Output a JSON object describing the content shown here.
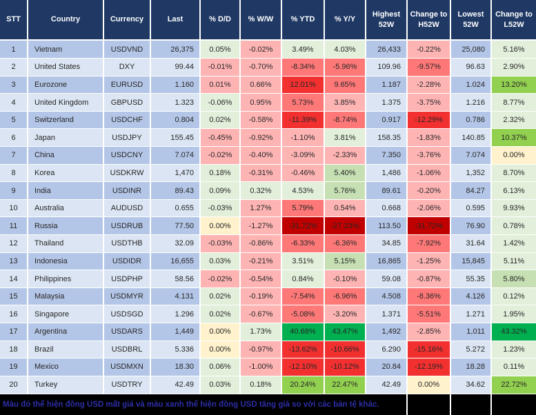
{
  "colors": {
    "header_bg": "#1f3864",
    "header_text": "#ffffff",
    "row_blue_odd": "#b4c6e7",
    "row_blue_even": "#dbe5f3",
    "g": "#e2efda",
    "g1": "#c6e0b4",
    "g2": "#92d050",
    "g3": "#00b050",
    "p": "#ffb4b4",
    "r1": "#ff7878",
    "r2": "#f23030",
    "r3": "#c00000",
    "y": "#fff2cc",
    "footer_bg": "#000000",
    "footer_text": "#2d2da6"
  },
  "table": {
    "columns": [
      "STT",
      "Country",
      "Currency",
      "Last",
      "% D/D",
      "% W/W",
      "% YTD",
      "% Y/Y",
      "Highest 52W",
      "Change to H52W",
      "Lowest 52W",
      "Change to L52W"
    ]
  },
  "rows": [
    {
      "stt": "1",
      "country": "Vietnam",
      "currency": "USDVND",
      "last": "26,375",
      "dd": {
        "v": "0.05%",
        "c": "g"
      },
      "ww": {
        "v": "-0.02%",
        "c": "p"
      },
      "ytd": {
        "v": "3.49%",
        "c": "g"
      },
      "yy": {
        "v": "4.03%",
        "c": "g"
      },
      "high": "26,433",
      "chh": {
        "v": "-0.22%",
        "c": "p"
      },
      "low": "25,080",
      "chl": {
        "v": "5.16%",
        "c": "g"
      }
    },
    {
      "stt": "2",
      "country": "United States",
      "currency": "DXY",
      "last": "99.44",
      "dd": {
        "v": "-0.01%",
        "c": "p"
      },
      "ww": {
        "v": "-0.70%",
        "c": "p"
      },
      "ytd": {
        "v": "-8.34%",
        "c": "r1"
      },
      "yy": {
        "v": "-5.96%",
        "c": "r1"
      },
      "high": "109.96",
      "chh": {
        "v": "-9.57%",
        "c": "r1"
      },
      "low": "96.63",
      "chl": {
        "v": "2.90%",
        "c": "g"
      }
    },
    {
      "stt": "3",
      "country": "Eurozone",
      "currency": "EURUSD",
      "last": "1.160",
      "dd": {
        "v": "0.01%",
        "c": "p"
      },
      "ww": {
        "v": "0.66%",
        "c": "p"
      },
      "ytd": {
        "v": "12.01%",
        "c": "r2"
      },
      "yy": {
        "v": "9.65%",
        "c": "r1"
      },
      "high": "1.187",
      "chh": {
        "v": "-2.28%",
        "c": "p"
      },
      "low": "1.024",
      "chl": {
        "v": "13.20%",
        "c": "g2"
      }
    },
    {
      "stt": "4",
      "country": "United Kingdom",
      "currency": "GBPUSD",
      "last": "1.323",
      "dd": {
        "v": "-0.06%",
        "c": "g"
      },
      "ww": {
        "v": "0.95%",
        "c": "p"
      },
      "ytd": {
        "v": "5.73%",
        "c": "r1"
      },
      "yy": {
        "v": "3.85%",
        "c": "p"
      },
      "high": "1.375",
      "chh": {
        "v": "-3.75%",
        "c": "p"
      },
      "low": "1.216",
      "chl": {
        "v": "8.77%",
        "c": "g"
      }
    },
    {
      "stt": "5",
      "country": "Switzerland",
      "currency": "USDCHF",
      "last": "0.804",
      "dd": {
        "v": "0.02%",
        "c": "g"
      },
      "ww": {
        "v": "-0.58%",
        "c": "p"
      },
      "ytd": {
        "v": "-11.39%",
        "c": "r2"
      },
      "yy": {
        "v": "-8.74%",
        "c": "r1"
      },
      "high": "0.917",
      "chh": {
        "v": "-12.29%",
        "c": "r2"
      },
      "low": "0.786",
      "chl": {
        "v": "2.32%",
        "c": "g"
      }
    },
    {
      "stt": "6",
      "country": "Japan",
      "currency": "USDJPY",
      "last": "155.45",
      "dd": {
        "v": "-0.45%",
        "c": "p"
      },
      "ww": {
        "v": "-0.92%",
        "c": "p"
      },
      "ytd": {
        "v": "-1.10%",
        "c": "p"
      },
      "yy": {
        "v": "3.81%",
        "c": "g"
      },
      "high": "158.35",
      "chh": {
        "v": "-1.83%",
        "c": "p"
      },
      "low": "140.85",
      "chl": {
        "v": "10.37%",
        "c": "g2"
      }
    },
    {
      "stt": "7",
      "country": "China",
      "currency": "USDCNY",
      "last": "7.074",
      "dd": {
        "v": "-0.02%",
        "c": "p"
      },
      "ww": {
        "v": "-0.40%",
        "c": "p"
      },
      "ytd": {
        "v": "-3.09%",
        "c": "p"
      },
      "yy": {
        "v": "-2.33%",
        "c": "p"
      },
      "high": "7.350",
      "chh": {
        "v": "-3.76%",
        "c": "p"
      },
      "low": "7.074",
      "chl": {
        "v": "0.00%",
        "c": "y"
      }
    },
    {
      "stt": "8",
      "country": "Korea",
      "currency": "USDKRW",
      "last": "1,470",
      "dd": {
        "v": "0.18%",
        "c": "g"
      },
      "ww": {
        "v": "-0.31%",
        "c": "p"
      },
      "ytd": {
        "v": "-0.46%",
        "c": "p"
      },
      "yy": {
        "v": "5.40%",
        "c": "g1"
      },
      "high": "1,486",
      "chh": {
        "v": "-1.06%",
        "c": "p"
      },
      "low": "1,352",
      "chl": {
        "v": "8.70%",
        "c": "g"
      }
    },
    {
      "stt": "9",
      "country": "India",
      "currency": "USDINR",
      "last": "89.43",
      "dd": {
        "v": "0.09%",
        "c": "g"
      },
      "ww": {
        "v": "0.32%",
        "c": "g"
      },
      "ytd": {
        "v": "4.53%",
        "c": "g"
      },
      "yy": {
        "v": "5.76%",
        "c": "g1"
      },
      "high": "89.61",
      "chh": {
        "v": "-0.20%",
        "c": "p"
      },
      "low": "84.27",
      "chl": {
        "v": "6.13%",
        "c": "g"
      }
    },
    {
      "stt": "10",
      "country": "Australia",
      "currency": "AUDUSD",
      "last": "0.655",
      "dd": {
        "v": "-0.03%",
        "c": "g"
      },
      "ww": {
        "v": "1.27%",
        "c": "p"
      },
      "ytd": {
        "v": "5.79%",
        "c": "r1"
      },
      "yy": {
        "v": "0.54%",
        "c": "p"
      },
      "high": "0.668",
      "chh": {
        "v": "-2.06%",
        "c": "p"
      },
      "low": "0.595",
      "chl": {
        "v": "9.93%",
        "c": "g"
      }
    },
    {
      "stt": "11",
      "country": "Russia",
      "currency": "USDRUB",
      "last": "77.50",
      "dd": {
        "v": "0.00%",
        "c": "y"
      },
      "ww": {
        "v": "-1.27%",
        "c": "p"
      },
      "ytd": {
        "v": "-31.72%",
        "c": "r3"
      },
      "yy": {
        "v": "-27.23%",
        "c": "r3"
      },
      "high": "113.50",
      "chh": {
        "v": "-31.72%",
        "c": "r3"
      },
      "low": "76.90",
      "chl": {
        "v": "0.78%",
        "c": "g"
      }
    },
    {
      "stt": "12",
      "country": "Thailand",
      "currency": "USDTHB",
      "last": "32.09",
      "dd": {
        "v": "-0.03%",
        "c": "p"
      },
      "ww": {
        "v": "-0.86%",
        "c": "p"
      },
      "ytd": {
        "v": "-6.33%",
        "c": "r1"
      },
      "yy": {
        "v": "-6.36%",
        "c": "r1"
      },
      "high": "34.85",
      "chh": {
        "v": "-7.92%",
        "c": "r1"
      },
      "low": "31.64",
      "chl": {
        "v": "1.42%",
        "c": "g"
      }
    },
    {
      "stt": "13",
      "country": "Indonesia",
      "currency": "USDIDR",
      "last": "16,655",
      "dd": {
        "v": "0.03%",
        "c": "g"
      },
      "ww": {
        "v": "-0.21%",
        "c": "p"
      },
      "ytd": {
        "v": "3.51%",
        "c": "g"
      },
      "yy": {
        "v": "5.15%",
        "c": "g1"
      },
      "high": "16,865",
      "chh": {
        "v": "-1.25%",
        "c": "p"
      },
      "low": "15,845",
      "chl": {
        "v": "5.11%",
        "c": "g"
      }
    },
    {
      "stt": "14",
      "country": "Philippines",
      "currency": "USDPHP",
      "last": "58.56",
      "dd": {
        "v": "-0.02%",
        "c": "p"
      },
      "ww": {
        "v": "-0.54%",
        "c": "p"
      },
      "ytd": {
        "v": "0.84%",
        "c": "g"
      },
      "yy": {
        "v": "-0.10%",
        "c": "p"
      },
      "high": "59.08",
      "chh": {
        "v": "-0.87%",
        "c": "p"
      },
      "low": "55.35",
      "chl": {
        "v": "5.80%",
        "c": "g1"
      }
    },
    {
      "stt": "15",
      "country": "Malaysia",
      "currency": "USDMYR",
      "last": "4.131",
      "dd": {
        "v": "0.02%",
        "c": "g"
      },
      "ww": {
        "v": "-0.19%",
        "c": "p"
      },
      "ytd": {
        "v": "-7.54%",
        "c": "r1"
      },
      "yy": {
        "v": "-6.96%",
        "c": "r1"
      },
      "high": "4.508",
      "chh": {
        "v": "-8.36%",
        "c": "r1"
      },
      "low": "4.126",
      "chl": {
        "v": "0.12%",
        "c": "g"
      }
    },
    {
      "stt": "16",
      "country": "Singapore",
      "currency": "USDSGD",
      "last": "1.296",
      "dd": {
        "v": "0.02%",
        "c": "g"
      },
      "ww": {
        "v": "-0.67%",
        "c": "p"
      },
      "ytd": {
        "v": "-5.08%",
        "c": "r1"
      },
      "yy": {
        "v": "-3.20%",
        "c": "p"
      },
      "high": "1.371",
      "chh": {
        "v": "-5.51%",
        "c": "r1"
      },
      "low": "1.271",
      "chl": {
        "v": "1.95%",
        "c": "g"
      }
    },
    {
      "stt": "17",
      "country": "Argentina",
      "currency": "USDARS",
      "last": "1,449",
      "dd": {
        "v": "0.00%",
        "c": "y"
      },
      "ww": {
        "v": "1.73%",
        "c": "g"
      },
      "ytd": {
        "v": "40.68%",
        "c": "g3"
      },
      "yy": {
        "v": "43.47%",
        "c": "g3"
      },
      "high": "1,492",
      "chh": {
        "v": "-2.85%",
        "c": "p"
      },
      "low": "1,011",
      "chl": {
        "v": "43.32%",
        "c": "g3"
      }
    },
    {
      "stt": "18",
      "country": "Brazil",
      "currency": "USDBRL",
      "last": "5.336",
      "dd": {
        "v": "0.00%",
        "c": "y"
      },
      "ww": {
        "v": "-0.97%",
        "c": "p"
      },
      "ytd": {
        "v": "-13.62%",
        "c": "r2"
      },
      "yy": {
        "v": "-10.66%",
        "c": "r2"
      },
      "high": "6.290",
      "chh": {
        "v": "-15.16%",
        "c": "r2"
      },
      "low": "5.272",
      "chl": {
        "v": "1.23%",
        "c": "g"
      }
    },
    {
      "stt": "19",
      "country": "Mexico",
      "currency": "USDMXN",
      "last": "18.30",
      "dd": {
        "v": "0.06%",
        "c": "g"
      },
      "ww": {
        "v": "-1.00%",
        "c": "p"
      },
      "ytd": {
        "v": "-12.10%",
        "c": "r2"
      },
      "yy": {
        "v": "-10.12%",
        "c": "r2"
      },
      "high": "20.84",
      "chh": {
        "v": "-12.19%",
        "c": "r2"
      },
      "low": "18.28",
      "chl": {
        "v": "0.11%",
        "c": "g"
      }
    },
    {
      "stt": "20",
      "country": "Turkey",
      "currency": "USDTRY",
      "last": "42.49",
      "dd": {
        "v": "0.03%",
        "c": "g"
      },
      "ww": {
        "v": "0.18%",
        "c": "g"
      },
      "ytd": {
        "v": "20.24%",
        "c": "g2"
      },
      "yy": {
        "v": "22.47%",
        "c": "g2"
      },
      "high": "42.49",
      "chh": {
        "v": "0.00%",
        "c": "y"
      },
      "low": "34.62",
      "chl": {
        "v": "22.72%",
        "c": "g2"
      }
    }
  ],
  "footer": {
    "note": "Màu đỏ thể hiện đồng USD mất giá và màu xanh thể hiện đồng USD tăng giá so với các bản tệ khác."
  },
  "chart_data": {
    "type": "table",
    "columns": [
      "STT",
      "Country",
      "Currency",
      "Last",
      "% D/D",
      "% W/W",
      "% YTD",
      "% Y/Y",
      "Highest 52W",
      "Change to H52W",
      "Lowest 52W",
      "Change to L52W"
    ],
    "rows": [
      [
        "1",
        "Vietnam",
        "USDVND",
        "26,375",
        "0.05%",
        "-0.02%",
        "3.49%",
        "4.03%",
        "26,433",
        "-0.22%",
        "25,080",
        "5.16%"
      ],
      [
        "2",
        "United States",
        "DXY",
        "99.44",
        "-0.01%",
        "-0.70%",
        "-8.34%",
        "-5.96%",
        "109.96",
        "-9.57%",
        "96.63",
        "2.90%"
      ],
      [
        "3",
        "Eurozone",
        "EURUSD",
        "1.160",
        "0.01%",
        "0.66%",
        "12.01%",
        "9.65%",
        "1.187",
        "-2.28%",
        "1.024",
        "13.20%"
      ],
      [
        "4",
        "United Kingdom",
        "GBPUSD",
        "1.323",
        "-0.06%",
        "0.95%",
        "5.73%",
        "3.85%",
        "1.375",
        "-3.75%",
        "1.216",
        "8.77%"
      ],
      [
        "5",
        "Switzerland",
        "USDCHF",
        "0.804",
        "0.02%",
        "-0.58%",
        "-11.39%",
        "-8.74%",
        "0.917",
        "-12.29%",
        "0.786",
        "2.32%"
      ],
      [
        "6",
        "Japan",
        "USDJPY",
        "155.45",
        "-0.45%",
        "-0.92%",
        "-1.10%",
        "3.81%",
        "158.35",
        "-1.83%",
        "140.85",
        "10.37%"
      ],
      [
        "7",
        "China",
        "USDCNY",
        "7.074",
        "-0.02%",
        "-0.40%",
        "-3.09%",
        "-2.33%",
        "7.350",
        "-3.76%",
        "7.074",
        "0.00%"
      ],
      [
        "8",
        "Korea",
        "USDKRW",
        "1,470",
        "0.18%",
        "-0.31%",
        "-0.46%",
        "5.40%",
        "1,486",
        "-1.06%",
        "1,352",
        "8.70%"
      ],
      [
        "9",
        "India",
        "USDINR",
        "89.43",
        "0.09%",
        "0.32%",
        "4.53%",
        "5.76%",
        "89.61",
        "-0.20%",
        "84.27",
        "6.13%"
      ],
      [
        "10",
        "Australia",
        "AUDUSD",
        "0.655",
        "-0.03%",
        "1.27%",
        "5.79%",
        "0.54%",
        "0.668",
        "-2.06%",
        "0.595",
        "9.93%"
      ],
      [
        "11",
        "Russia",
        "USDRUB",
        "77.50",
        "0.00%",
        "-1.27%",
        "-31.72%",
        "-27.23%",
        "113.50",
        "-31.72%",
        "76.90",
        "0.78%"
      ],
      [
        "12",
        "Thailand",
        "USDTHB",
        "32.09",
        "-0.03%",
        "-0.86%",
        "-6.33%",
        "-6.36%",
        "34.85",
        "-7.92%",
        "31.64",
        "1.42%"
      ],
      [
        "13",
        "Indonesia",
        "USDIDR",
        "16,655",
        "0.03%",
        "-0.21%",
        "3.51%",
        "5.15%",
        "16,865",
        "-1.25%",
        "15,845",
        "5.11%"
      ],
      [
        "14",
        "Philippines",
        "USDPHP",
        "58.56",
        "-0.02%",
        "-0.54%",
        "0.84%",
        "-0.10%",
        "59.08",
        "-0.87%",
        "55.35",
        "5.80%"
      ],
      [
        "15",
        "Malaysia",
        "USDMYR",
        "4.131",
        "0.02%",
        "-0.19%",
        "-7.54%",
        "-6.96%",
        "4.508",
        "-8.36%",
        "4.126",
        "0.12%"
      ],
      [
        "16",
        "Singapore",
        "USDSGD",
        "1.296",
        "0.02%",
        "-0.67%",
        "-5.08%",
        "-3.20%",
        "1.371",
        "-5.51%",
        "1.271",
        "1.95%"
      ],
      [
        "17",
        "Argentina",
        "USDARS",
        "1,449",
        "0.00%",
        "1.73%",
        "40.68%",
        "43.47%",
        "1,492",
        "-2.85%",
        "1,011",
        "43.32%"
      ],
      [
        "18",
        "Brazil",
        "USDBRL",
        "5.336",
        "0.00%",
        "-0.97%",
        "-13.62%",
        "-10.66%",
        "6.290",
        "-15.16%",
        "5.272",
        "1.23%"
      ],
      [
        "19",
        "Mexico",
        "USDMXN",
        "18.30",
        "0.06%",
        "-1.00%",
        "-12.10%",
        "-10.12%",
        "20.84",
        "-12.19%",
        "18.28",
        "0.11%"
      ],
      [
        "20",
        "Turkey",
        "USDTRY",
        "42.49",
        "0.03%",
        "0.18%",
        "20.24%",
        "22.47%",
        "42.49",
        "0.00%",
        "34.62",
        "22.72%"
      ]
    ]
  }
}
